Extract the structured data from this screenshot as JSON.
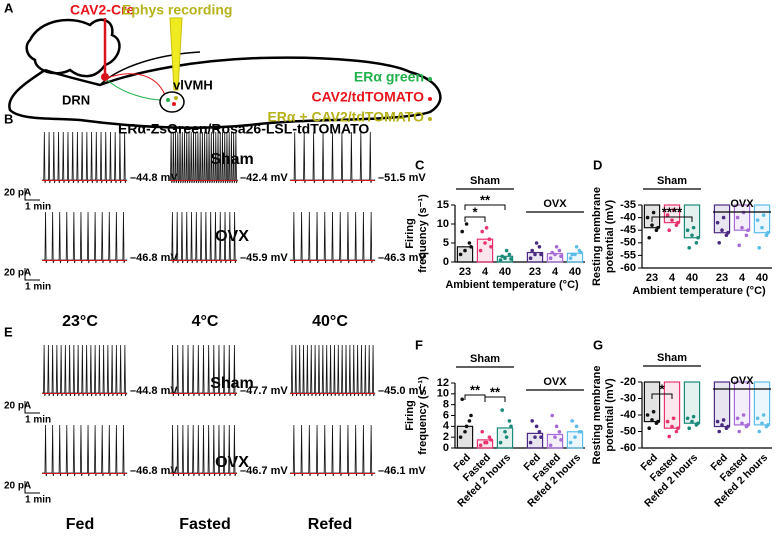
{
  "panel_labels": [
    "A",
    "B",
    "C",
    "D",
    "E",
    "F",
    "G"
  ],
  "schematic": {
    "cre": "CAV2-Cre",
    "ephys": "Ephys recording",
    "drn": "DRN",
    "vmh": "vlVMH",
    "legend": [
      "ERα green",
      "CAV2/tdTOMATO",
      "ERα + CAV2/tdTOMATO"
    ],
    "legend_colors": [
      "#22b14c",
      "#e8141c",
      "#b5b21a"
    ],
    "mouse": "ERα-ZsGreen/Rosa26-LSL-tdTOMATO"
  },
  "traces": [
    {
      "rows": [
        "Sham",
        "OVX"
      ],
      "columns": [
        "23°C",
        "4°C",
        "40°C"
      ],
      "scale_current": "20 pA",
      "scale_time": "1 min",
      "potentials": [
        [
          "–44.8 mV",
          "–42.4 mV",
          "–51.5 mV"
        ],
        [
          "–46.8 mV",
          "–45.9 mV",
          "–46.3 mV"
        ]
      ]
    },
    {
      "rows": [
        "Sham",
        "OVX"
      ],
      "columns": [
        "Fed",
        "Fasted",
        "Refed"
      ],
      "scale_current": "20 pA",
      "scale_time": "1 min",
      "potentials": [
        [
          "–44.8 mV",
          "–47.7 mV",
          "–45.0 mV"
        ],
        [
          "–46.8 mV",
          "–46.7 mV",
          "–46.1 mV"
        ]
      ]
    }
  ],
  "chart_data": [
    {
      "type": "bar",
      "ylabel": [
        "Firing",
        "frequency (s⁻¹)"
      ],
      "xlabel": "Ambient temperature (°C)",
      "categories": [
        "23",
        "4",
        "40",
        "23",
        "4",
        "40"
      ],
      "values": [
        4,
        6,
        1.5,
        2.5,
        2.2,
        2.3
      ],
      "points": [
        [
          2,
          3,
          5,
          8,
          10,
          4
        ],
        [
          3,
          5,
          6,
          8,
          9,
          4
        ],
        [
          0.5,
          1,
          2,
          1.5,
          3,
          0.8
        ],
        [
          1,
          2,
          4,
          3,
          5,
          2
        ],
        [
          1,
          2,
          3,
          2.5,
          4,
          1.5
        ],
        [
          1,
          2,
          3,
          2,
          4,
          2.5
        ]
      ],
      "colors": [
        "#111111",
        "#e8336d",
        "#1a8a7a",
        "#4b2a82",
        "#a56bd6",
        "#5bbde8"
      ],
      "ylim": [
        0,
        15
      ],
      "yticks": [
        0,
        5,
        10,
        15
      ],
      "groups": [
        "Sham",
        "OVX"
      ],
      "significance": [
        {
          "label": "*",
          "pair": [
            0,
            1
          ]
        },
        {
          "label": "**",
          "pair": [
            0,
            2
          ]
        }
      ]
    },
    {
      "type": "bar",
      "ylabel": [
        "Resting membrane",
        "potential (mV)"
      ],
      "xlabel": "Ambient temperature (°C)",
      "categories": [
        "23",
        "4",
        "40",
        "23",
        "4",
        "40"
      ],
      "values": [
        -44,
        -42,
        -48,
        -46,
        -45,
        -46
      ],
      "points": [
        [
          -40,
          -43,
          -45,
          -48,
          -38,
          -44
        ],
        [
          -39,
          -41,
          -43,
          -45,
          -37,
          -42
        ],
        [
          -45,
          -47,
          -50,
          -52,
          -44,
          -48
        ],
        [
          -42,
          -45,
          -47,
          -50,
          -40,
          -46
        ],
        [
          -40,
          -44,
          -47,
          -51,
          -38,
          -45
        ],
        [
          -41,
          -44,
          -47,
          -52,
          -39,
          -46
        ]
      ],
      "colors": [
        "#111111",
        "#e8336d",
        "#1a8a7a",
        "#4b2a82",
        "#a56bd6",
        "#5bbde8"
      ],
      "ylim": [
        -60,
        -35
      ],
      "yticks": [
        -60,
        -55,
        -50,
        -45,
        -40,
        -35
      ],
      "groups": [
        "Sham",
        "OVX"
      ],
      "significance": [
        {
          "label": "****",
          "pair": [
            0,
            2
          ]
        }
      ]
    },
    {
      "type": "bar",
      "ylabel": [
        "Firing",
        "frequency (s⁻¹)"
      ],
      "categories": [
        "Fed",
        "Fasted",
        "Refed 2 hours",
        "Fed",
        "Fasted",
        "Refed 2 hours"
      ],
      "values": [
        4,
        1.5,
        3.7,
        2.7,
        2.5,
        3
      ],
      "points": [
        [
          2,
          3,
          5,
          9,
          4,
          6
        ],
        [
          0.5,
          1,
          2,
          3,
          1,
          1.5
        ],
        [
          1,
          3,
          5,
          7,
          2,
          4
        ],
        [
          1,
          2,
          3,
          5,
          4,
          2
        ],
        [
          0.5,
          2,
          3,
          6,
          4,
          1.5
        ],
        [
          1,
          2,
          3,
          5,
          4,
          3
        ]
      ],
      "colors": [
        "#111111",
        "#e8336d",
        "#1a8a7a",
        "#4b2a82",
        "#a56bd6",
        "#5bbde8"
      ],
      "ylim": [
        0,
        12
      ],
      "yticks": [
        0,
        2,
        4,
        6,
        8,
        10,
        12
      ],
      "groups": [
        "Sham",
        "OVX"
      ],
      "significance": [
        {
          "label": "**",
          "pair": [
            0,
            1
          ]
        },
        {
          "label": "**",
          "pair": [
            1,
            2
          ]
        }
      ]
    },
    {
      "type": "bar",
      "ylabel": [
        "Resting membrane",
        "potential (mV)"
      ],
      "categories": [
        "Fed",
        "Fasted",
        "Refed 2 hours",
        "Fed",
        "Fasted",
        "Refed 2 hours"
      ],
      "values": [
        -44,
        -48,
        -45,
        -47,
        -46,
        -46
      ],
      "points": [
        [
          -40,
          -43,
          -45,
          -48,
          -38,
          -44
        ],
        [
          -44,
          -47,
          -50,
          -53,
          -42,
          -48
        ],
        [
          -42,
          -44,
          -46,
          -48,
          -41,
          -45
        ],
        [
          -44,
          -46,
          -48,
          -50,
          -43,
          -47
        ],
        [
          -42,
          -45,
          -47,
          -50,
          -40,
          -46
        ],
        [
          -42,
          -45,
          -47,
          -50,
          -40,
          -46
        ]
      ],
      "colors": [
        "#111111",
        "#e8336d",
        "#1a8a7a",
        "#4b2a82",
        "#a56bd6",
        "#5bbde8"
      ],
      "ylim": [
        -60,
        -20
      ],
      "yticks": [
        -60,
        -50,
        -40,
        -30,
        -20
      ],
      "groups": [
        "Sham",
        "OVX"
      ],
      "significance": [
        {
          "label": "*",
          "pair": [
            0,
            1
          ]
        }
      ]
    }
  ]
}
